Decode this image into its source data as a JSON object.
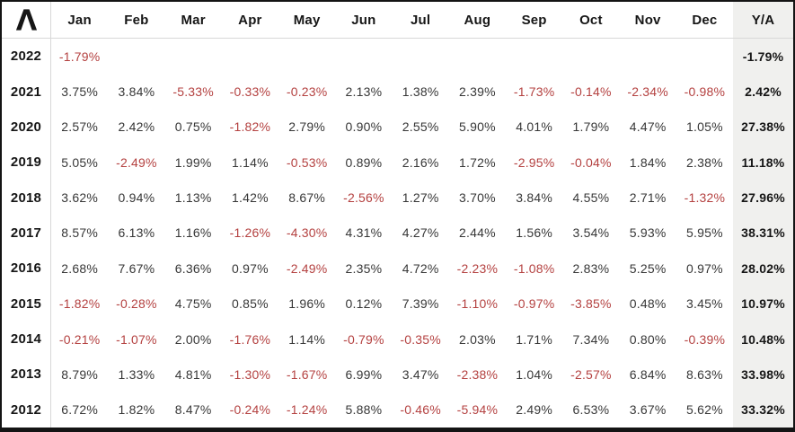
{
  "header": {
    "logo_icon": "caret-lambda-logo",
    "months": [
      "Jan",
      "Feb",
      "Mar",
      "Apr",
      "May",
      "Jun",
      "Jul",
      "Aug",
      "Sep",
      "Oct",
      "Nov",
      "Dec"
    ],
    "annual_label": "Y/A"
  },
  "colors": {
    "negative": "#b44140",
    "positive_text": "#373737",
    "heading_text": "#161616",
    "annual_col_bg": "#f0f0ee",
    "grid_line": "#d8d8d8",
    "frame": "#141414"
  },
  "chart_data": {
    "type": "table",
    "columns": [
      "Jan",
      "Feb",
      "Mar",
      "Apr",
      "May",
      "Jun",
      "Jul",
      "Aug",
      "Sep",
      "Oct",
      "Nov",
      "Dec",
      "Y/A"
    ],
    "value_format": "percent_two_decimals",
    "series": [
      {
        "year": "2022",
        "monthly": [
          -1.79,
          null,
          null,
          null,
          null,
          null,
          null,
          null,
          null,
          null,
          null,
          null
        ],
        "annual": -1.79
      },
      {
        "year": "2021",
        "monthly": [
          3.75,
          3.84,
          -5.33,
          -0.33,
          -0.23,
          2.13,
          1.38,
          2.39,
          -1.73,
          -0.14,
          -2.34,
          -0.98
        ],
        "annual": 2.42
      },
      {
        "year": "2020",
        "monthly": [
          2.57,
          2.42,
          0.75,
          -1.82,
          2.79,
          0.9,
          2.55,
          5.9,
          4.01,
          1.79,
          4.47,
          1.05
        ],
        "annual": 27.38
      },
      {
        "year": "2019",
        "monthly": [
          5.05,
          -2.49,
          1.99,
          1.14,
          -0.53,
          0.89,
          2.16,
          1.72,
          -2.95,
          -0.04,
          1.84,
          2.38
        ],
        "annual": 11.18
      },
      {
        "year": "2018",
        "monthly": [
          3.62,
          0.94,
          1.13,
          1.42,
          8.67,
          -2.56,
          1.27,
          3.7,
          3.84,
          4.55,
          2.71,
          -1.32
        ],
        "annual": 27.96
      },
      {
        "year": "2017",
        "monthly": [
          8.57,
          6.13,
          1.16,
          -1.26,
          -4.3,
          4.31,
          4.27,
          2.44,
          1.56,
          3.54,
          5.93,
          5.95
        ],
        "annual": 38.31
      },
      {
        "year": "2016",
        "monthly": [
          2.68,
          7.67,
          6.36,
          0.97,
          -2.49,
          2.35,
          4.72,
          -2.23,
          -1.08,
          2.83,
          5.25,
          0.97
        ],
        "annual": 28.02
      },
      {
        "year": "2015",
        "monthly": [
          -1.82,
          -0.28,
          4.75,
          0.85,
          1.96,
          0.12,
          7.39,
          -1.1,
          -0.97,
          -3.85,
          0.48,
          3.45
        ],
        "annual": 10.97
      },
      {
        "year": "2014",
        "monthly": [
          -0.21,
          -1.07,
          2.0,
          -1.76,
          1.14,
          -0.79,
          -0.35,
          2.03,
          1.71,
          7.34,
          0.8,
          -0.39
        ],
        "annual": 10.48
      },
      {
        "year": "2013",
        "monthly": [
          8.79,
          1.33,
          4.81,
          -1.3,
          -1.67,
          6.99,
          3.47,
          -2.38,
          1.04,
          -2.57,
          6.84,
          8.63
        ],
        "annual": 33.98
      },
      {
        "year": "2012",
        "monthly": [
          6.72,
          1.82,
          8.47,
          -0.24,
          -1.24,
          5.88,
          -0.46,
          -5.94,
          2.49,
          6.53,
          3.67,
          5.62
        ],
        "annual": 33.32
      }
    ]
  }
}
